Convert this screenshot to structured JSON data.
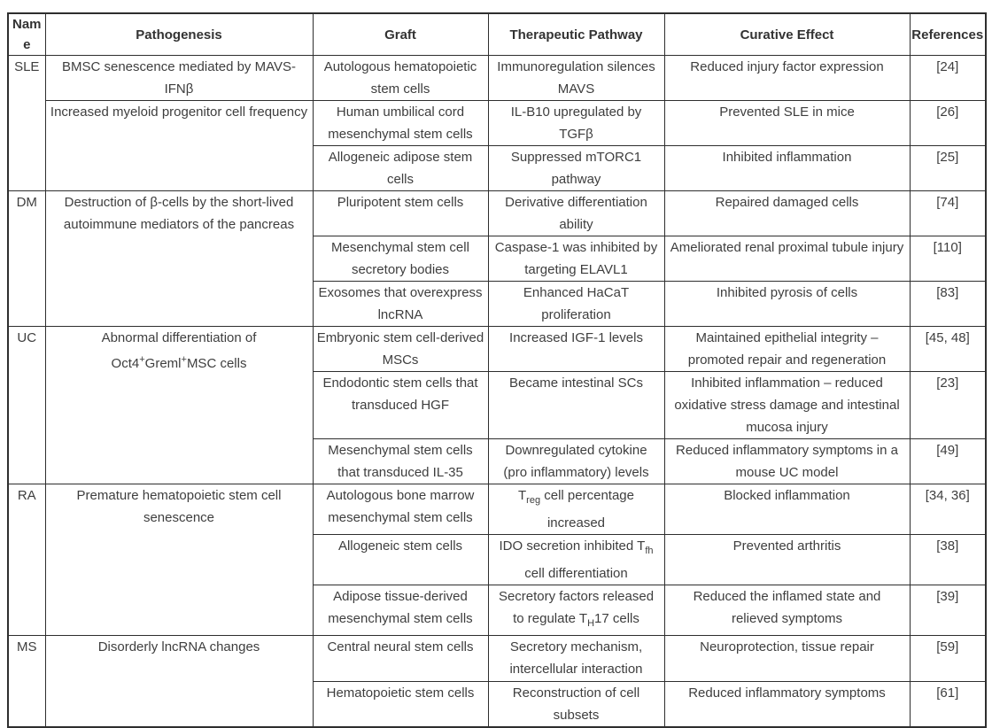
{
  "table": {
    "headers": [
      "Name",
      "Pathogenesis",
      "Graft",
      "Therapeutic Pathway",
      "Curative Effect",
      "References"
    ],
    "groups": [
      {
        "name": "SLE",
        "rows": [
          {
            "pathogenesis": "BMSC senescence mediated by MAVS-IFNβ",
            "graft": "Autologous hematopoietic stem cells",
            "pathway": "Immunoregulation silences MAVS",
            "effect": "Reduced injury factor expression",
            "ref": "[24]"
          },
          {
            "pathogenesis": "Increased myeloid progenitor cell frequency",
            "graft": "Human umbilical cord mesenchymal stem cells",
            "pathway": "IL-B10 upregulated by TGFβ",
            "effect": "Prevented SLE in mice",
            "ref": "[26]"
          },
          {
            "graft": "Allogeneic adipose stem cells",
            "pathway": "Suppressed mTORC1 pathway",
            "effect": "Inhibited inflammation",
            "ref": "[25]"
          }
        ]
      },
      {
        "name": "DM",
        "rows": [
          {
            "pathogenesis": "Destruction of β-cells by the short-lived autoimmune mediators of the pancreas",
            "graft": "Pluripotent stem cells",
            "pathway": "Derivative differentiation ability",
            "effect": "Repaired damaged cells",
            "ref": "[74]"
          },
          {
            "graft": "Mesenchymal stem cell secretory bodies",
            "pathway": "Caspase-1 was inhibited by targeting ELAVL1",
            "effect": "Ameliorated renal proximal tubule injury",
            "ref": "[110]"
          },
          {
            "graft": "Exosomes that overexpress lncRNA",
            "pathway": "Enhanced HaCaT proliferation",
            "effect": "Inhibited pyrosis of cells",
            "ref": "[83]"
          }
        ]
      },
      {
        "name": "UC",
        "rows": [
          {
            "pathogenesis": "Abnormal differentiation of Oct4<sup>+</sup>Greml<sup>+</sup>MSC cells",
            "graft": "Embryonic stem cell-derived MSCs",
            "pathway": "Increased IGF-1 levels",
            "effect": "Maintained epithelial integrity – promoted repair and regeneration",
            "ref": "[45, 48]"
          },
          {
            "graft": "Endodontic stem cells that transduced HGF",
            "pathway": "Became intestinal SCs",
            "effect": "Inhibited inflammation – reduced oxidative stress damage and intestinal mucosa injury",
            "ref": "[23]"
          },
          {
            "graft": "Mesenchymal stem cells that transduced IL-35",
            "pathway": "Downregulated cytokine (pro inflammatory) levels",
            "effect": "Reduced inflammatory symptoms in a mouse UC model",
            "ref": "[49]"
          }
        ]
      },
      {
        "name": "RA",
        "rows": [
          {
            "pathogenesis": "Premature hematopoietic stem cell senescence",
            "graft": "Autologous bone marrow mesenchymal stem cells",
            "pathway": "T<sub>reg</sub> cell percentage increased",
            "effect": "Blocked inflammation",
            "ref": "[34, 36]"
          },
          {
            "graft": "Allogeneic stem cells",
            "pathway": "IDO secretion inhibited T<sub>fh</sub> cell differentiation",
            "effect": "Prevented arthritis",
            "ref": "[38]"
          },
          {
            "graft": "Adipose tissue-derived mesenchymal stem cells",
            "pathway": "Secretory factors released to regulate T<sub>H</sub>17 cells",
            "effect": "Reduced the inflamed state and relieved symptoms",
            "ref": "[39]"
          }
        ]
      },
      {
        "name": "MS",
        "rows": [
          {
            "pathogenesis": "Disorderly lncRNA changes",
            "graft": "Central neural stem cells",
            "pathway": "Secretory mechanism, intercellular interaction",
            "effect": "Neuroprotection, tissue repair",
            "ref": "[59]"
          },
          {
            "graft": "Hematopoietic stem cells",
            "pathway": "Reconstruction of cell subsets",
            "effect": "Reduced inflammatory symptoms",
            "ref": "[61]"
          }
        ]
      }
    ]
  }
}
